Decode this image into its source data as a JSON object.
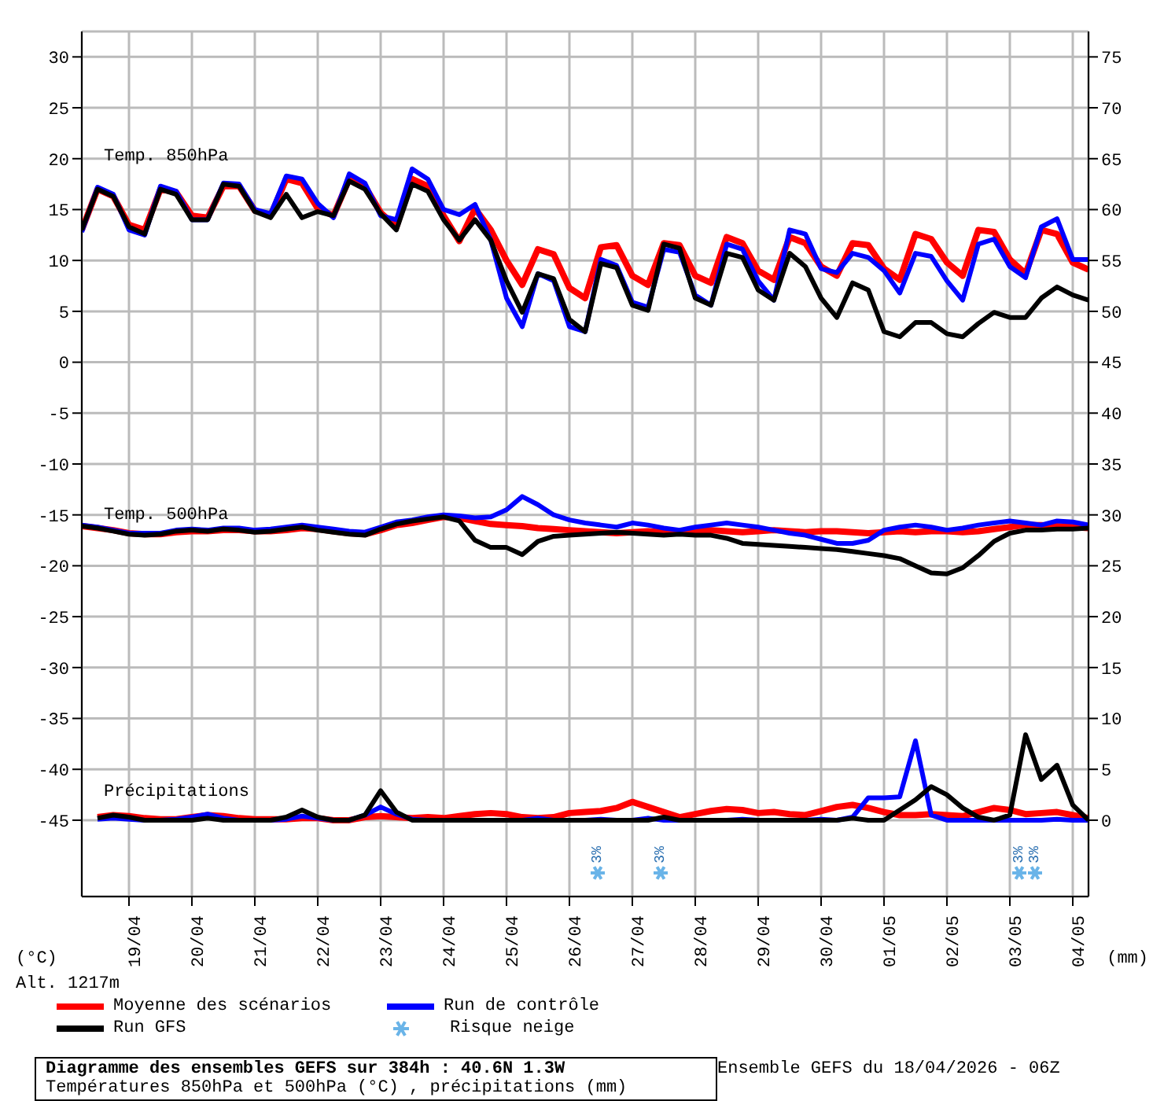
{
  "chart_data": {
    "type": "line",
    "title": "Diagramme des ensembles GEFS sur 384h : 40.6N 1.3W",
    "subtitle": "Températures 850hPa et 500hPa (°C) , précipitations (mm)",
    "ylabel": "(°C)",
    "y2label": "(mm)",
    "x": [
      "2026-04-18T06:00",
      "2026-04-18T12:00",
      "2026-04-18T18:00",
      "2026-04-19T00:00",
      "2026-04-19T06:00",
      "2026-04-19T12:00",
      "2026-04-19T18:00",
      "2026-04-20T00:00",
      "2026-04-20T06:00",
      "2026-04-20T12:00",
      "2026-04-20T18:00",
      "2026-04-21T00:00",
      "2026-04-21T06:00",
      "2026-04-21T12:00",
      "2026-04-21T18:00",
      "2026-04-22T00:00",
      "2026-04-22T06:00",
      "2026-04-22T12:00",
      "2026-04-22T18:00",
      "2026-04-23T00:00",
      "2026-04-23T06:00",
      "2026-04-23T12:00",
      "2026-04-23T18:00",
      "2026-04-24T00:00",
      "2026-04-24T06:00",
      "2026-04-24T12:00",
      "2026-04-24T18:00",
      "2026-04-25T00:00",
      "2026-04-25T06:00",
      "2026-04-25T12:00",
      "2026-04-25T18:00",
      "2026-04-26T00:00",
      "2026-04-26T06:00",
      "2026-04-26T12:00",
      "2026-04-26T18:00",
      "2026-04-27T00:00",
      "2026-04-27T06:00",
      "2026-04-27T12:00",
      "2026-04-27T18:00",
      "2026-04-28T00:00",
      "2026-04-28T06:00",
      "2026-04-28T12:00",
      "2026-04-28T18:00",
      "2026-04-29T00:00",
      "2026-04-29T06:00",
      "2026-04-29T12:00",
      "2026-04-29T18:00",
      "2026-04-30T00:00",
      "2026-04-30T06:00",
      "2026-04-30T12:00",
      "2026-04-30T18:00",
      "2026-05-01T00:00",
      "2026-05-01T06:00",
      "2026-05-01T12:00",
      "2026-05-01T18:00",
      "2026-05-02T00:00",
      "2026-05-02T06:00",
      "2026-05-02T12:00",
      "2026-05-02T18:00",
      "2026-05-03T00:00",
      "2026-05-03T06:00",
      "2026-05-03T12:00",
      "2026-05-03T18:00",
      "2026-05-04T00:00",
      "2026-05-04T06:00"
    ],
    "series": [
      {
        "name": "Moyenne des scénarios",
        "color": "#ff0000",
        "values": [
          13,
          17,
          16.3,
          13.5,
          13,
          17,
          16.7,
          14.4,
          14.2,
          17.3,
          17.3,
          14.9,
          14.4,
          18,
          17.6,
          15.1,
          14.4,
          18,
          17.3,
          14.7,
          13.3,
          18,
          17.3,
          14.4,
          11.9,
          15.1,
          13,
          10,
          7.6,
          11.1,
          10.6,
          7.3,
          6.3,
          11.3,
          11.5,
          8.5,
          7.6,
          11.7,
          11.5,
          8.5,
          7.8,
          12.3,
          11.7,
          9,
          8.1,
          12.3,
          11.7,
          9.4,
          8.5,
          11.7,
          11.5,
          9.2,
          8.1,
          12.6,
          12.1,
          9.8,
          8.5,
          13,
          12.8,
          10.1,
          8.7,
          13,
          12.6,
          9.8,
          9.1
        ]
      },
      {
        "name": "Run de contrôle",
        "color": "#0000ff",
        "values": [
          12.8,
          17.2,
          16.5,
          13,
          12.5,
          17.3,
          16.8,
          14,
          14,
          17.6,
          17.5,
          15,
          14.6,
          18.3,
          18,
          15.6,
          14.2,
          18.5,
          17.6,
          14.4,
          14,
          19,
          18,
          15,
          14.5,
          15.5,
          12,
          6.3,
          3.5,
          8.7,
          8,
          3.5,
          3,
          10.1,
          9.5,
          5.9,
          5.4,
          11.1,
          10.8,
          6.6,
          5.6,
          11.6,
          11.1,
          8,
          6.1,
          13,
          12.6,
          9.2,
          8.8,
          10.7,
          10.3,
          9,
          6.8,
          10.7,
          10.4,
          8,
          6.1,
          11.6,
          12.1,
          9.4,
          8.3,
          13.3,
          14.1,
          10.1,
          10.1
        ]
      },
      {
        "name": "Run GFS",
        "color": "#000000",
        "values": [
          13,
          17,
          16.3,
          13.3,
          12.6,
          17,
          16.5,
          14,
          14,
          17.5,
          17.3,
          14.8,
          14.2,
          16.5,
          14.2,
          14.8,
          14.4,
          17.8,
          17,
          14.6,
          13,
          17.5,
          16.8,
          14,
          12,
          14,
          12,
          8,
          4.9,
          8.7,
          8.2,
          4.2,
          3,
          9.7,
          9.3,
          5.6,
          5.1,
          11.6,
          11.2,
          6.3,
          5.6,
          10.7,
          10.3,
          7.1,
          6.1,
          10.7,
          9.4,
          6.3,
          4.4,
          7.8,
          7.1,
          3,
          2.5,
          3.9,
          3.9,
          2.8,
          2.5,
          3.8,
          4.9,
          4.4,
          4.4,
          6.3,
          7.4,
          6.6,
          6.1
        ]
      },
      {
        "color": "#ff0000",
        "values": [
          -16.1,
          -16.3,
          -16.5,
          -16.8,
          -16.9,
          -16.9,
          -16.7,
          -16.6,
          -16.6,
          -16.5,
          -16.5,
          -16.6,
          -16.6,
          -16.5,
          -16.3,
          -16.4,
          -16.6,
          -16.8,
          -16.9,
          -16.5,
          -16,
          -15.8,
          -15.5,
          -15.2,
          -15.3,
          -15.6,
          -15.9,
          -16,
          -16.1,
          -16.3,
          -16.4,
          -16.5,
          -16.6,
          -16.7,
          -16.8,
          -16.7,
          -16.6,
          -16.7,
          -16.8,
          -16.6,
          -16.5,
          -16.6,
          -16.7,
          -16.6,
          -16.5,
          -16.6,
          -16.7,
          -16.6,
          -16.6,
          -16.7,
          -16.8,
          -16.7,
          -16.6,
          -16.7,
          -16.6,
          -16.6,
          -16.7,
          -16.6,
          -16.4,
          -16.2,
          -16,
          -16,
          -16.1,
          -16.2,
          -16.3
        ]
      },
      {
        "color": "#0000ff",
        "values": [
          -16,
          -16.2,
          -16.5,
          -16.8,
          -16.8,
          -16.8,
          -16.5,
          -16.4,
          -16.5,
          -16.3,
          -16.3,
          -16.5,
          -16.4,
          -16.2,
          -16,
          -16.2,
          -16.4,
          -16.6,
          -16.7,
          -16.2,
          -15.7,
          -15.5,
          -15.2,
          -15,
          -15.1,
          -15.3,
          -15.2,
          -14.5,
          -13.2,
          -14,
          -15,
          -15.5,
          -15.8,
          -16,
          -16.2,
          -15.8,
          -16,
          -16.3,
          -16.5,
          -16.2,
          -16,
          -15.8,
          -16,
          -16.2,
          -16.5,
          -16.8,
          -17,
          -17.4,
          -17.8,
          -17.8,
          -17.5,
          -16.5,
          -16.2,
          -16,
          -16.2,
          -16.5,
          -16.3,
          -16,
          -15.8,
          -15.6,
          -15.8,
          -16,
          -15.6,
          -15.7,
          -16
        ]
      },
      {
        "color": "#000000",
        "values": [
          -16.1,
          -16.3,
          -16.6,
          -16.9,
          -17,
          -16.9,
          -16.6,
          -16.5,
          -16.6,
          -16.4,
          -16.5,
          -16.7,
          -16.6,
          -16.4,
          -16.2,
          -16.5,
          -16.7,
          -16.9,
          -17,
          -16.4,
          -15.9,
          -15.6,
          -15.4,
          -15.2,
          -15.6,
          -17.5,
          -18.2,
          -18.2,
          -18.9,
          -17.6,
          -17.1,
          -17,
          -16.9,
          -16.8,
          -16.7,
          -16.8,
          -16.9,
          -17,
          -16.9,
          -17,
          -17,
          -17.3,
          -17.8,
          -17.9,
          -18,
          -18.1,
          -18.2,
          -18.3,
          -18.4,
          -18.6,
          -18.8,
          -19,
          -19.3,
          -20,
          -20.7,
          -20.8,
          -20.2,
          -19,
          -17.6,
          -16.8,
          -16.5,
          -16.5,
          -16.4,
          -16.4,
          -16.3
        ]
      },
      {
        "color": "#ff0000",
        "axis": "y2",
        "values": [
          null,
          0.3,
          0.5,
          0.4,
          0.2,
          0.1,
          0.1,
          0.3,
          0.5,
          0.4,
          0.2,
          0.1,
          0.1,
          0.1,
          0.2,
          0.2,
          0,
          0,
          0.3,
          0.4,
          0.3,
          0.2,
          0.3,
          0.2,
          0.4,
          0.6,
          0.7,
          0.6,
          0.3,
          0.2,
          0.3,
          0.7,
          0.8,
          0.9,
          1.2,
          1.8,
          1.3,
          0.8,
          0.3,
          0.6,
          0.9,
          1.1,
          1,
          0.7,
          0.8,
          0.6,
          0.5,
          0.9,
          1.3,
          1.5,
          1.2,
          0.8,
          0.5,
          0.5,
          0.6,
          0.5,
          0.4,
          0.8,
          1.2,
          1,
          0.6,
          0.7,
          0.8,
          0.5,
          0.2
        ]
      },
      {
        "color": "#0000ff",
        "axis": "y2",
        "values": [
          null,
          0.1,
          0.2,
          0.1,
          0,
          0,
          0.1,
          0.3,
          0.6,
          0.2,
          0,
          0,
          0,
          0.1,
          0.4,
          0.2,
          0,
          0,
          0.5,
          1.3,
          0.6,
          0.1,
          0,
          0,
          0,
          0,
          0,
          0,
          0,
          0.2,
          0,
          0,
          0,
          0.1,
          0,
          0,
          0.2,
          0,
          0,
          0,
          0,
          0,
          0.1,
          0,
          0,
          0,
          0,
          0.1,
          0,
          0.3,
          2.2,
          2.2,
          2.3,
          7.8,
          0.5,
          0,
          0,
          0,
          0,
          0,
          0,
          0,
          0.1,
          0,
          0
        ]
      },
      {
        "color": "#000000",
        "axis": "y2",
        "values": [
          null,
          0.2,
          0.5,
          0.3,
          0,
          0,
          0,
          0,
          0.2,
          0,
          0,
          0,
          0,
          0.3,
          1,
          0.3,
          0,
          0,
          0.5,
          2.9,
          0.8,
          0,
          0,
          0,
          0,
          0,
          0,
          0,
          0,
          0,
          0,
          0,
          0,
          0,
          0,
          0,
          0,
          0.3,
          0,
          0,
          0,
          0,
          0,
          0,
          0,
          0,
          0,
          0,
          0,
          0.2,
          0,
          0,
          1,
          2,
          3.3,
          2.5,
          1.2,
          0.3,
          0,
          0.5,
          8.4,
          4,
          5.4,
          1.5,
          0
        ]
      }
    ],
    "xlim": [
      "2026-04-18T06:00",
      "2026-05-04T06:00"
    ],
    "xticks": [
      {
        "value": "2026-04-19",
        "label": "19/04"
      },
      {
        "value": "2026-04-20",
        "label": "20/04"
      },
      {
        "value": "2026-04-21",
        "label": "21/04"
      },
      {
        "value": "2026-04-22",
        "label": "22/04"
      },
      {
        "value": "2026-04-23",
        "label": "23/04"
      },
      {
        "value": "2026-04-24",
        "label": "24/04"
      },
      {
        "value": "2026-04-25",
        "label": "25/04"
      },
      {
        "value": "2026-04-26",
        "label": "26/04"
      },
      {
        "value": "2026-04-27",
        "label": "27/04"
      },
      {
        "value": "2026-04-28",
        "label": "28/04"
      },
      {
        "value": "2026-04-29",
        "label": "29/04"
      },
      {
        "value": "2026-04-30",
        "label": "30/04"
      },
      {
        "value": "2026-05-01",
        "label": "01/05"
      },
      {
        "value": "2026-05-02",
        "label": "02/05"
      },
      {
        "value": "2026-05-03",
        "label": "03/05"
      },
      {
        "value": "2026-05-04",
        "label": "04/05"
      }
    ],
    "ylim": [
      -52.5,
      32.5
    ],
    "yticks": [
      30,
      25,
      20,
      15,
      10,
      5,
      0,
      -5,
      -10,
      -15,
      -20,
      -25,
      -30,
      -35,
      -40,
      -45
    ],
    "y2lim": [
      -7.5,
      77.5
    ],
    "y2ticks": [
      75,
      70,
      65,
      60,
      55,
      50,
      45,
      40,
      35,
      30,
      25,
      20,
      15,
      10,
      5,
      0
    ],
    "grid": true,
    "legend": "bottom left",
    "annotations": [
      "Temp. 850hPa",
      "Temp. 500hPa",
      "Précipitations",
      "Alt. 1217m",
      "Risque neige",
      "Ensemble GEFS du 18/04/2026 - 06Z",
      "3%",
      "3%",
      "3%",
      "3%"
    ]
  }
}
